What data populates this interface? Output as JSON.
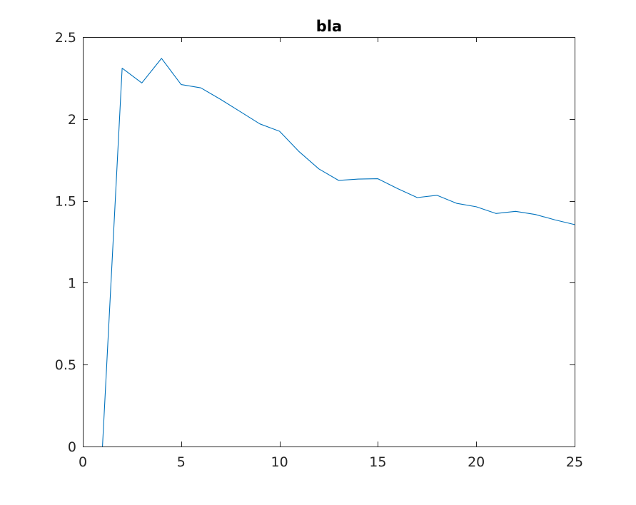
{
  "chart_data": {
    "type": "line",
    "title": "bla",
    "xlabel": "",
    "ylabel": "",
    "xlim": [
      0,
      25
    ],
    "ylim": [
      0,
      2.5
    ],
    "xticks": [
      0,
      5,
      10,
      15,
      20,
      25
    ],
    "yticks": [
      0,
      0.5,
      1,
      1.5,
      2,
      2.5
    ],
    "xtick_labels": [
      "0",
      "5",
      "10",
      "15",
      "20",
      "25"
    ],
    "ytick_labels": [
      "0",
      "0.5",
      "1",
      "1.5",
      "2",
      "2.5"
    ],
    "grid": false,
    "box": true,
    "series": [
      {
        "color": "#0072BD",
        "x": [
          1,
          2,
          3,
          4,
          5,
          6,
          7,
          8,
          9,
          10,
          11,
          12,
          13,
          14,
          15,
          16,
          17,
          18,
          19,
          20,
          21,
          22,
          23,
          24,
          25
        ],
        "y": [
          0,
          2.31,
          2.22,
          2.37,
          2.21,
          2.19,
          2.12,
          2.045,
          1.97,
          1.925,
          1.8,
          1.695,
          1.625,
          1.633,
          1.635,
          1.575,
          1.52,
          1.534,
          1.485,
          1.464,
          1.423,
          1.436,
          1.417,
          1.384,
          1.355
        ]
      }
    ]
  }
}
